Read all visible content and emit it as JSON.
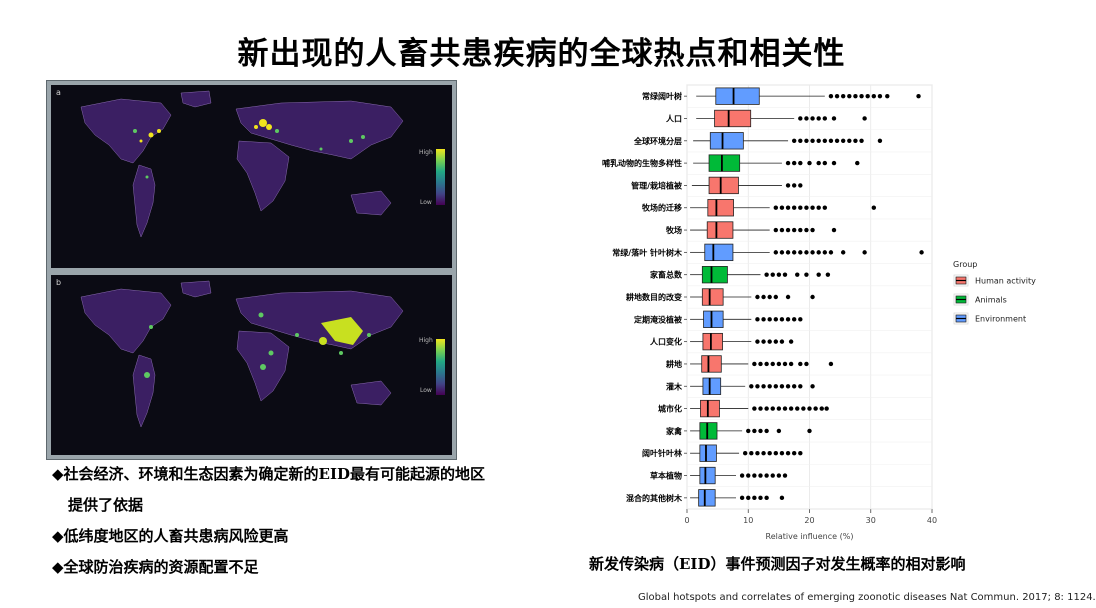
{
  "slide": {
    "title": "新出现的人畜共患疾病的全球热点和相关性",
    "chart_caption": "新发传染病（EID）事件预测因子对发生概率的相对影响",
    "citation": "Global hotspots and correlates of emerging zoonotic diseases  Nat Commun. 2017; 8: 1124."
  },
  "maps": {
    "panel_a_label": "a",
    "panel_b_label": "b",
    "colorbar_high": "High",
    "colorbar_low": "Low"
  },
  "bullets": [
    {
      "marker": "◆",
      "text": "社会经济、环境和生态因素为确定新的EID最有可能起源的地区"
    },
    {
      "marker": "",
      "text": "提供了依据"
    },
    {
      "marker": "◆",
      "text": "低纬度地区的人畜共患病风险更高"
    },
    {
      "marker": "◆",
      "text": "全球防治疾病的资源配置不足"
    }
  ],
  "chart_data": {
    "type": "boxplot",
    "xlabel": "Relative influence (%)",
    "xlim": [
      0,
      40
    ],
    "xticks": [
      0,
      10,
      20,
      30,
      40
    ],
    "grid": true,
    "legend": {
      "title": "Group",
      "position": "right",
      "entries": [
        {
          "name": "Human activity",
          "color": "#f8766d"
        },
        {
          "name": "Animals",
          "color": "#00ba38"
        },
        {
          "name": "Environment",
          "color": "#619cff"
        }
      ]
    },
    "colors": {
      "Human activity": "#f8766d",
      "Animals": "#00ba38",
      "Environment": "#619cff"
    },
    "categories": [
      {
        "label": "常绿阔叶树",
        "group": "Environment",
        "whisker_low": 1.5,
        "q1": 4.7,
        "median": 7.6,
        "q3": 11.8,
        "whisker_high": 22.5,
        "outliers": [
          23.5,
          24.5,
          25.5,
          26.5,
          27.5,
          28.5,
          29.5,
          30.5,
          31.5,
          32.7,
          37.8
        ]
      },
      {
        "label": "人口",
        "group": "Human activity",
        "whisker_low": 1.5,
        "q1": 4.5,
        "median": 6.8,
        "q3": 10.4,
        "whisker_high": 17.5,
        "outliers": [
          18.5,
          19.5,
          20.5,
          21.5,
          22.5,
          24.0,
          29.0
        ]
      },
      {
        "label": "全球环境分层",
        "group": "Environment",
        "whisker_low": 1.0,
        "q1": 3.8,
        "median": 5.8,
        "q3": 9.2,
        "whisker_high": 16.5,
        "outliers": [
          17.5,
          18.5,
          19.5,
          20.5,
          21.5,
          22.5,
          23.5,
          24.5,
          25.5,
          26.5,
          27.5,
          28.5,
          31.5
        ]
      },
      {
        "label": "哺乳动物的生物多样性",
        "group": "Animals",
        "whisker_low": 1.0,
        "q1": 3.6,
        "median": 5.7,
        "q3": 8.6,
        "whisker_high": 15.5,
        "outliers": [
          16.5,
          17.5,
          18.5,
          20.0,
          21.5,
          22.5,
          24.0,
          27.8
        ]
      },
      {
        "label": "管理/栽培植被",
        "group": "Human activity",
        "whisker_low": 0.8,
        "q1": 3.6,
        "median": 5.5,
        "q3": 8.4,
        "whisker_high": 15.5,
        "outliers": [
          16.5,
          17.5,
          18.5
        ]
      },
      {
        "label": "牧场的迁移",
        "group": "Human activity",
        "whisker_low": 0.5,
        "q1": 3.4,
        "median": 4.8,
        "q3": 7.6,
        "whisker_high": 13.5,
        "outliers": [
          14.5,
          15.5,
          16.5,
          17.5,
          18.5,
          19.5,
          20.5,
          21.5,
          22.5,
          30.5
        ]
      },
      {
        "label": "牧场",
        "group": "Human activity",
        "whisker_low": 0.5,
        "q1": 3.3,
        "median": 4.8,
        "q3": 7.5,
        "whisker_high": 13.5,
        "outliers": [
          14.5,
          15.5,
          16.5,
          17.5,
          18.5,
          19.5,
          20.5,
          24.0
        ]
      },
      {
        "label": "常绿/落叶 针叶树木",
        "group": "Environment",
        "whisker_low": 0.5,
        "q1": 2.9,
        "median": 4.3,
        "q3": 7.5,
        "whisker_high": 13.5,
        "outliers": [
          14.5,
          15.5,
          16.5,
          17.5,
          18.5,
          19.5,
          20.5,
          21.5,
          22.5,
          23.5,
          25.5,
          29.0,
          38.3
        ]
      },
      {
        "label": "家畜总数",
        "group": "Animals",
        "whisker_low": 0.5,
        "q1": 2.5,
        "median": 4.0,
        "q3": 6.6,
        "whisker_high": 12.0,
        "outliers": [
          13.0,
          14.0,
          15.0,
          16.0,
          18.0,
          19.5,
          21.5,
          23.0
        ]
      },
      {
        "label": "耕地数目的改变",
        "group": "Human activity",
        "whisker_low": 0.5,
        "q1": 2.5,
        "median": 3.7,
        "q3": 5.9,
        "whisker_high": 10.5,
        "outliers": [
          11.5,
          12.5,
          13.5,
          14.5,
          16.5,
          20.5
        ]
      },
      {
        "label": "定期淹没植被",
        "group": "Environment",
        "whisker_low": 0.5,
        "q1": 2.7,
        "median": 4.0,
        "q3": 5.9,
        "whisker_high": 10.5,
        "outliers": [
          11.5,
          12.5,
          13.5,
          14.5,
          15.5,
          16.5,
          17.5,
          18.5
        ]
      },
      {
        "label": "人口变化",
        "group": "Human activity",
        "whisker_low": 0.5,
        "q1": 2.6,
        "median": 3.9,
        "q3": 5.8,
        "whisker_high": 10.5,
        "outliers": [
          11.5,
          12.5,
          13.5,
          14.5,
          15.5,
          17.0
        ]
      },
      {
        "label": "耕地",
        "group": "Human activity",
        "whisker_low": 0.5,
        "q1": 2.4,
        "median": 3.5,
        "q3": 5.6,
        "whisker_high": 10.0,
        "outliers": [
          11.0,
          12.0,
          13.0,
          14.0,
          15.0,
          16.0,
          17.0,
          18.5,
          19.5,
          23.5
        ]
      },
      {
        "label": "灌木",
        "group": "Environment",
        "whisker_low": 0.5,
        "q1": 2.6,
        "median": 3.7,
        "q3": 5.5,
        "whisker_high": 9.5,
        "outliers": [
          10.5,
          11.5,
          12.5,
          13.5,
          14.5,
          15.5,
          16.5,
          17.5,
          18.5,
          20.5
        ]
      },
      {
        "label": "城市化",
        "group": "Human activity",
        "whisker_low": 0.5,
        "q1": 2.2,
        "median": 3.4,
        "q3": 5.3,
        "whisker_high": 10.0,
        "outliers": [
          11.0,
          12.0,
          13.0,
          14.0,
          15.0,
          16.0,
          17.0,
          18.0,
          19.0,
          20.0,
          21.0,
          22.0,
          22.8
        ]
      },
      {
        "label": "家禽",
        "group": "Animals",
        "whisker_low": 0.5,
        "q1": 2.1,
        "median": 3.3,
        "q3": 4.9,
        "whisker_high": 9.0,
        "outliers": [
          10.0,
          11.0,
          12.0,
          13.0,
          15.0,
          20.0
        ]
      },
      {
        "label": "阔叶针叶林",
        "group": "Environment",
        "whisker_low": 0.5,
        "q1": 2.1,
        "median": 3.1,
        "q3": 4.8,
        "whisker_high": 8.5,
        "outliers": [
          9.5,
          10.5,
          11.5,
          12.5,
          13.5,
          14.5,
          15.5,
          16.5,
          17.5,
          18.5
        ]
      },
      {
        "label": "草本植物",
        "group": "Environment",
        "whisker_low": 0.5,
        "q1": 2.1,
        "median": 3.0,
        "q3": 4.6,
        "whisker_high": 8.0,
        "outliers": [
          9.0,
          10.0,
          11.0,
          12.0,
          13.0,
          14.0,
          15.0,
          16.0
        ]
      },
      {
        "label": "混合的其他树木",
        "group": "Environment",
        "whisker_low": 0.5,
        "q1": 1.9,
        "median": 2.9,
        "q3": 4.6,
        "whisker_high": 8.0,
        "outliers": [
          9.0,
          10.0,
          11.0,
          12.0,
          13.0,
          15.5
        ]
      }
    ]
  }
}
